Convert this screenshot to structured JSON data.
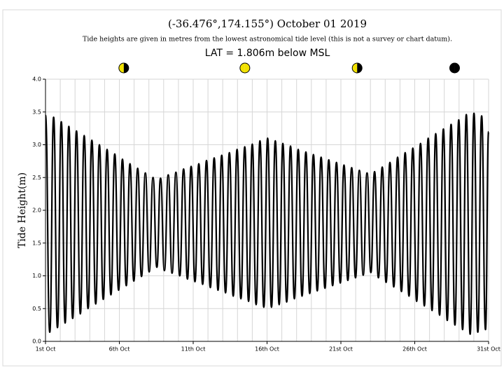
{
  "chart_data": {
    "type": "line",
    "title": "(-36.476°,174.155°) October 01 2019",
    "subtitle": "Tide heights are given in metres from the lowest astronomical tide level (this is not a survey or chart datum).",
    "datum_note": "LAT = 1.806m below MSL",
    "y_label": "Tide Height(m)",
    "xlim": [
      0,
      30
    ],
    "ylim": [
      0,
      4
    ],
    "xticks": [
      {
        "value": 0,
        "label": "1st Oct"
      },
      {
        "value": 5,
        "label": "6th Oct"
      },
      {
        "value": 10,
        "label": "11th Oct"
      },
      {
        "value": 15,
        "label": "16th Oct"
      },
      {
        "value": 20,
        "label": "21st Oct"
      },
      {
        "value": 25,
        "label": "26th Oct"
      },
      {
        "value": 30,
        "label": "31st Oct"
      }
    ],
    "xgrid": [
      1,
      2,
      3,
      4,
      6,
      7,
      8,
      9,
      11,
      12,
      13,
      14,
      16,
      17,
      18,
      19,
      21,
      22,
      23,
      24,
      26,
      27,
      28,
      29
    ],
    "yticks": [
      {
        "value": 0,
        "label": "0.0"
      },
      {
        "value": 0.5,
        "label": "0.5"
      },
      {
        "value": 1,
        "label": "1.0"
      },
      {
        "value": 1.5,
        "label": "1.5"
      },
      {
        "value": 2,
        "label": "2.0"
      },
      {
        "value": 2.5,
        "label": "2.5"
      },
      {
        "value": 3,
        "label": "3.0"
      },
      {
        "value": 3.5,
        "label": "3.5"
      },
      {
        "value": 4,
        "label": "4.0"
      }
    ],
    "grid": true,
    "color": "#000000",
    "moons": [
      {
        "x": 5.3,
        "colors": [
          "#f2e200",
          "#000000"
        ]
      },
      {
        "x": 13.5,
        "colors": [
          "#f2e200",
          "#f2e200"
        ]
      },
      {
        "x": 21.1,
        "colors": [
          "#f2e200",
          "#000000"
        ]
      },
      {
        "x": 27.7,
        "colors": [
          "#000000",
          "#000000"
        ]
      }
    ],
    "x": [
      0,
      0.29,
      0.55,
      0.81,
      1.07,
      1.33,
      1.58,
      1.84,
      2.1,
      2.36,
      2.62,
      2.88,
      3.14,
      3.4,
      3.65,
      3.91,
      4.17,
      4.43,
      4.69,
      4.95,
      5.21,
      5.47,
      5.72,
      5.98,
      6.24,
      6.5,
      6.76,
      7.02,
      7.28,
      7.54,
      7.79,
      8.05,
      8.31,
      8.57,
      8.83,
      9.09,
      9.35,
      9.61,
      9.86,
      10.12,
      10.38,
      10.64,
      10.9,
      11.16,
      11.42,
      11.68,
      11.93,
      12.19,
      12.45,
      12.71,
      12.97,
      13.23,
      13.49,
      13.75,
      14.0,
      14.26,
      14.52,
      14.78,
      15.04,
      15.3,
      15.56,
      15.82,
      16.07,
      16.33,
      16.59,
      16.85,
      17.11,
      17.37,
      17.63,
      17.89,
      18.14,
      18.4,
      18.66,
      18.92,
      19.18,
      19.44,
      19.7,
      19.96,
      20.21,
      20.47,
      20.73,
      20.99,
      21.25,
      21.51,
      21.77,
      22.03,
      22.28,
      22.54,
      22.8,
      23.06,
      23.32,
      23.58,
      23.84,
      24.1,
      24.35,
      24.61,
      24.87,
      25.13,
      25.39,
      25.65,
      25.91,
      26.17,
      26.42,
      26.68,
      26.94,
      27.2,
      27.46,
      27.72,
      27.98,
      28.24,
      28.49,
      28.75,
      29.01,
      29.27,
      29.53,
      29.79,
      30
    ],
    "values": [
      3.45,
      0.14,
      3.42,
      0.21,
      3.35,
      0.28,
      3.28,
      0.35,
      3.21,
      0.42,
      3.14,
      0.5,
      3.07,
      0.57,
      3.0,
      0.64,
      2.93,
      0.71,
      2.86,
      0.78,
      2.78,
      0.85,
      2.71,
      0.92,
      2.64,
      0.99,
      2.57,
      1.06,
      2.5,
      1.13,
      2.49,
      1.08,
      2.54,
      1.04,
      2.58,
      1.0,
      2.63,
      0.95,
      2.67,
      0.91,
      2.71,
      0.87,
      2.76,
      0.82,
      2.8,
      0.78,
      2.84,
      0.74,
      2.88,
      0.69,
      2.93,
      0.65,
      2.97,
      0.61,
      3.01,
      0.56,
      3.06,
      0.52,
      3.1,
      0.52,
      3.06,
      0.56,
      3.02,
      0.6,
      2.98,
      0.65,
      2.93,
      0.69,
      2.89,
      0.73,
      2.85,
      0.77,
      2.81,
      0.81,
      2.77,
      0.85,
      2.73,
      0.89,
      2.69,
      0.93,
      2.65,
      0.97,
      2.61,
      1.01,
      2.57,
      1.05,
      2.59,
      0.97,
      2.66,
      0.9,
      2.73,
      0.83,
      2.81,
      0.76,
      2.88,
      0.69,
      2.95,
      0.61,
      3.02,
      0.54,
      3.1,
      0.47,
      3.17,
      0.4,
      3.24,
      0.32,
      3.31,
      0.25,
      3.38,
      0.18,
      3.46,
      0.11,
      3.48,
      0.14,
      3.44,
      0.18,
      3.2
    ]
  }
}
